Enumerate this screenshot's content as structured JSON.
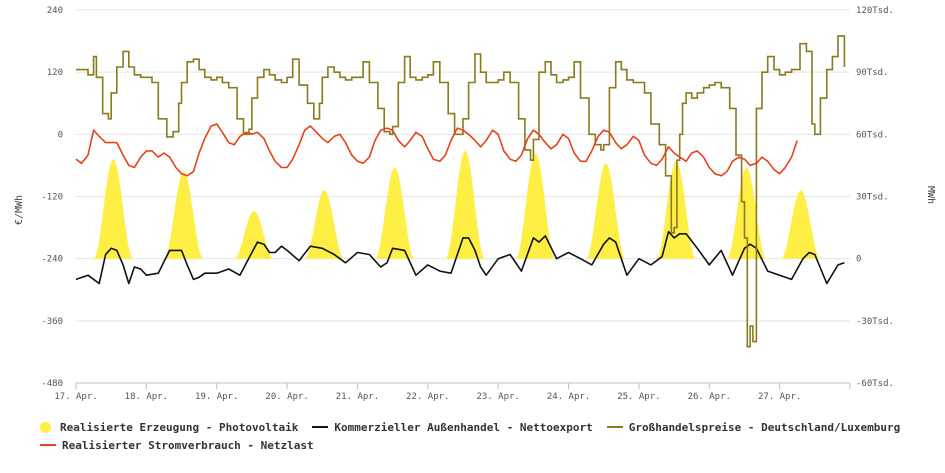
{
  "chart_data": {
    "type": "line",
    "title": "",
    "xlabel": "",
    "ylabel_left": "€/MWh",
    "ylabel_right": "MWh",
    "ylim_left": [
      -480,
      240
    ],
    "ylim_right": [
      -60000,
      120000
    ],
    "yticks_left": [
      240,
      120,
      0,
      -120,
      -240,
      -360,
      -480
    ],
    "yticks_right_labels": [
      "120Tsd.",
      "90Tsd.",
      "60Tsd.",
      "30Tsd.",
      "0",
      "-30Tsd.",
      "-60Tsd."
    ],
    "yticks_right_values": [
      120000,
      90000,
      60000,
      30000,
      0,
      -30000,
      -60000
    ],
    "xlim": [
      0,
      11
    ],
    "x_tick_labels": [
      "17. Apr.",
      "18. Apr.",
      "19. Apr.",
      "20. Apr.",
      "21. Apr.",
      "22. Apr.",
      "23. Apr.",
      "24. Apr.",
      "25. Apr.",
      "26. Apr.",
      "27. Apr."
    ],
    "colors": {
      "pv": "#ffee44",
      "export": "#111111",
      "price": "#8a7a1a",
      "load": "#e8421a",
      "grid": "#e4e4e4",
      "baseline": "#c0c0c0"
    },
    "series": [
      {
        "name": "Realisierte Erzeugung - Photovoltaik",
        "axis": "right",
        "style": "area",
        "peaks": [
          {
            "x": 0.53,
            "y": 48000
          },
          {
            "x": 1.53,
            "y": 42000
          },
          {
            "x": 2.53,
            "y": 23000
          },
          {
            "x": 3.53,
            "y": 33000
          },
          {
            "x": 4.53,
            "y": 44000
          },
          {
            "x": 5.53,
            "y": 52000
          },
          {
            "x": 6.53,
            "y": 51000
          },
          {
            "x": 7.53,
            "y": 46000
          },
          {
            "x": 8.53,
            "y": 47000
          },
          {
            "x": 9.53,
            "y": 44000
          },
          {
            "x": 10.3,
            "y": 33000
          }
        ]
      },
      {
        "name": "Kommerzieller Außenhandel - Nettoexport",
        "axis": "right",
        "style": "line",
        "x": [
          0,
          0.17,
          0.33,
          0.42,
          0.5,
          0.58,
          0.67,
          0.75,
          0.83,
          0.92,
          1.0,
          1.17,
          1.33,
          1.5,
          1.58,
          1.67,
          1.75,
          1.83,
          2.0,
          2.17,
          2.33,
          2.5,
          2.58,
          2.67,
          2.75,
          2.83,
          2.92,
          3.0,
          3.17,
          3.33,
          3.5,
          3.67,
          3.83,
          4.0,
          4.17,
          4.33,
          4.42,
          4.5,
          4.67,
          4.83,
          5.0,
          5.17,
          5.33,
          5.5,
          5.58,
          5.67,
          5.75,
          5.83,
          6.0,
          6.17,
          6.33,
          6.5,
          6.58,
          6.67,
          6.83,
          7.0,
          7.17,
          7.33,
          7.5,
          7.58,
          7.67,
          7.83,
          8.0,
          8.17,
          8.33,
          8.42,
          8.5,
          8.58,
          8.67,
          8.83,
          9.0,
          9.17,
          9.33,
          9.5,
          9.58,
          9.67,
          9.83,
          10.0,
          10.17,
          10.33,
          10.42,
          10.5,
          10.67,
          10.83,
          10.92
        ],
        "values": [
          -10000,
          -8000,
          -12000,
          2000,
          5000,
          4000,
          -3000,
          -12000,
          -4000,
          -5000,
          -8000,
          -7000,
          4000,
          4000,
          -3000,
          -10000,
          -9000,
          -7000,
          -7000,
          -5000,
          -8000,
          3000,
          8000,
          7000,
          3000,
          3000,
          6000,
          4000,
          -1000,
          6000,
          5000,
          2000,
          -2000,
          3000,
          2000,
          -4000,
          -2000,
          5000,
          4000,
          -8000,
          -3000,
          -6000,
          -7000,
          10000,
          10000,
          4000,
          -4000,
          -8000,
          0,
          2000,
          -6000,
          10000,
          8000,
          11000,
          0,
          3000,
          0,
          -3000,
          7000,
          10000,
          8000,
          -8000,
          0,
          -3000,
          1000,
          13000,
          10000,
          12000,
          12000,
          5000,
          -3000,
          4000,
          -8000,
          5000,
          7000,
          5000,
          -6000,
          -8000,
          -10000,
          0,
          3000,
          2000,
          -12000,
          -3000,
          -2000
        ]
      },
      {
        "name": "Großhandelspreise - Deutschland/Luxemburg",
        "axis": "left",
        "style": "step",
        "x": [
          0,
          0.17,
          0.25,
          0.29,
          0.38,
          0.46,
          0.5,
          0.58,
          0.67,
          0.75,
          0.83,
          0.92,
          1.0,
          1.08,
          1.17,
          1.29,
          1.38,
          1.46,
          1.5,
          1.58,
          1.67,
          1.75,
          1.83,
          1.92,
          2.0,
          2.08,
          2.17,
          2.29,
          2.38,
          2.46,
          2.5,
          2.58,
          2.67,
          2.75,
          2.83,
          2.92,
          3.0,
          3.08,
          3.17,
          3.29,
          3.38,
          3.46,
          3.5,
          3.58,
          3.67,
          3.75,
          3.83,
          3.92,
          4.0,
          4.08,
          4.17,
          4.29,
          4.38,
          4.46,
          4.5,
          4.58,
          4.67,
          4.75,
          4.83,
          4.92,
          5.0,
          5.08,
          5.17,
          5.29,
          5.38,
          5.46,
          5.5,
          5.58,
          5.67,
          5.75,
          5.83,
          5.92,
          6.0,
          6.08,
          6.17,
          6.29,
          6.38,
          6.46,
          6.5,
          6.58,
          6.67,
          6.75,
          6.83,
          6.92,
          7.0,
          7.08,
          7.17,
          7.29,
          7.38,
          7.46,
          7.5,
          7.58,
          7.67,
          7.75,
          7.83,
          7.92,
          8.0,
          8.08,
          8.17,
          8.29,
          8.38,
          8.46,
          8.5,
          8.54,
          8.58,
          8.62,
          8.67,
          8.75,
          8.83,
          8.92,
          9.0,
          9.08,
          9.17,
          9.29,
          9.38,
          9.46,
          9.5,
          9.54,
          9.58,
          9.62,
          9.67,
          9.75,
          9.83,
          9.92,
          10.0,
          10.08,
          10.17,
          10.29,
          10.38,
          10.46,
          10.5,
          10.58,
          10.67,
          10.75,
          10.83,
          10.92
        ],
        "values": [
          125,
          115,
          150,
          110,
          40,
          30,
          80,
          130,
          160,
          130,
          115,
          110,
          110,
          100,
          30,
          -5,
          5,
          60,
          100,
          140,
          145,
          125,
          110,
          105,
          110,
          100,
          90,
          30,
          0,
          10,
          70,
          110,
          125,
          115,
          105,
          100,
          110,
          145,
          95,
          60,
          30,
          60,
          110,
          130,
          120,
          110,
          105,
          110,
          110,
          140,
          100,
          50,
          5,
          0,
          15,
          100,
          150,
          110,
          105,
          110,
          115,
          140,
          100,
          40,
          0,
          0,
          30,
          100,
          155,
          120,
          100,
          100,
          105,
          120,
          100,
          30,
          -30,
          -50,
          -10,
          120,
          140,
          115,
          100,
          105,
          110,
          140,
          70,
          0,
          -20,
          -30,
          -20,
          90,
          140,
          125,
          105,
          100,
          100,
          80,
          20,
          -20,
          -80,
          -190,
          -180,
          -50,
          0,
          60,
          80,
          70,
          80,
          90,
          95,
          100,
          90,
          50,
          -40,
          -130,
          -200,
          -410,
          -370,
          -400,
          50,
          120,
          150,
          125,
          115,
          120,
          125,
          175,
          160,
          20,
          0,
          70,
          125,
          150,
          190,
          130
        ]
      },
      {
        "name": "Realisierter Stromverbrauch - Netzlast",
        "axis": "right",
        "style": "line",
        "x": [
          0,
          0.08,
          0.17,
          0.25,
          0.33,
          0.42,
          0.5,
          0.58,
          0.67,
          0.75,
          0.83,
          0.92,
          1.0,
          1.08,
          1.17,
          1.25,
          1.33,
          1.42,
          1.5,
          1.58,
          1.67,
          1.75,
          1.83,
          1.92,
          2.0,
          2.08,
          2.17,
          2.25,
          2.33,
          2.42,
          2.5,
          2.58,
          2.67,
          2.75,
          2.83,
          2.92,
          3.0,
          3.08,
          3.17,
          3.25,
          3.33,
          3.42,
          3.5,
          3.58,
          3.67,
          3.75,
          3.83,
          3.92,
          4.0,
          4.08,
          4.17,
          4.25,
          4.33,
          4.42,
          4.5,
          4.58,
          4.67,
          4.75,
          4.83,
          4.92,
          5.0,
          5.08,
          5.17,
          5.25,
          5.33,
          5.42,
          5.5,
          5.58,
          5.67,
          5.75,
          5.83,
          5.92,
          6.0,
          6.08,
          6.17,
          6.25,
          6.33,
          6.42,
          6.5,
          6.58,
          6.67,
          6.75,
          6.83,
          6.92,
          7.0,
          7.08,
          7.17,
          7.25,
          7.33,
          7.42,
          7.5,
          7.58,
          7.67,
          7.75,
          7.83,
          7.92,
          8.0,
          8.08,
          8.17,
          8.25,
          8.33,
          8.42,
          8.5,
          8.58,
          8.67,
          8.75,
          8.83,
          8.92,
          9.0,
          9.08,
          9.17,
          9.25,
          9.33,
          9.42,
          9.5,
          9.58,
          9.67,
          9.75,
          9.83,
          9.92,
          10.0,
          10.08,
          10.17,
          10.25
        ],
        "values": [
          48000,
          46000,
          50000,
          62000,
          59000,
          56000,
          56000,
          56000,
          50000,
          45000,
          44000,
          49000,
          52000,
          52000,
          49000,
          51000,
          49000,
          44000,
          41000,
          40000,
          42000,
          51000,
          58000,
          64000,
          65000,
          61000,
          56000,
          55000,
          59000,
          61000,
          60000,
          61000,
          58000,
          52000,
          47000,
          44000,
          44000,
          48000,
          55000,
          62000,
          64000,
          61000,
          58000,
          56000,
          59000,
          60000,
          56000,
          50000,
          47000,
          46000,
          49000,
          57000,
          62000,
          63000,
          62000,
          57000,
          54000,
          57000,
          61000,
          59000,
          53000,
          48000,
          47000,
          50000,
          57000,
          63000,
          62000,
          60000,
          57000,
          54000,
          57000,
          62000,
          60000,
          52000,
          48000,
          47000,
          50000,
          58000,
          62000,
          60000,
          56000,
          53000,
          55000,
          60000,
          58000,
          51000,
          47000,
          47000,
          52000,
          59000,
          62000,
          61000,
          56000,
          53000,
          55000,
          59000,
          57000,
          50000,
          46000,
          45000,
          48000,
          54000,
          51000,
          49000,
          47000,
          51000,
          52000,
          49000,
          44000,
          41000,
          40000,
          42000,
          47000,
          49000,
          48000,
          45000,
          46000,
          49000,
          47000,
          43000,
          41000,
          44000,
          49000,
          57000
        ]
      }
    ],
    "legend": [
      {
        "label": "Realisierte Erzeugung - Photovoltaik",
        "color": "#ffee44",
        "shape": "circle"
      },
      {
        "label": "Kommerzieller Außenhandel - Nettoexport",
        "color": "#111111",
        "shape": "line"
      },
      {
        "label": "Großhandelspreise - Deutschland/Luxemburg",
        "color": "#8a7a1a",
        "shape": "line"
      },
      {
        "label": "Realisierter Stromverbrauch - Netzlast",
        "color": "#e8421a",
        "shape": "line"
      }
    ]
  }
}
